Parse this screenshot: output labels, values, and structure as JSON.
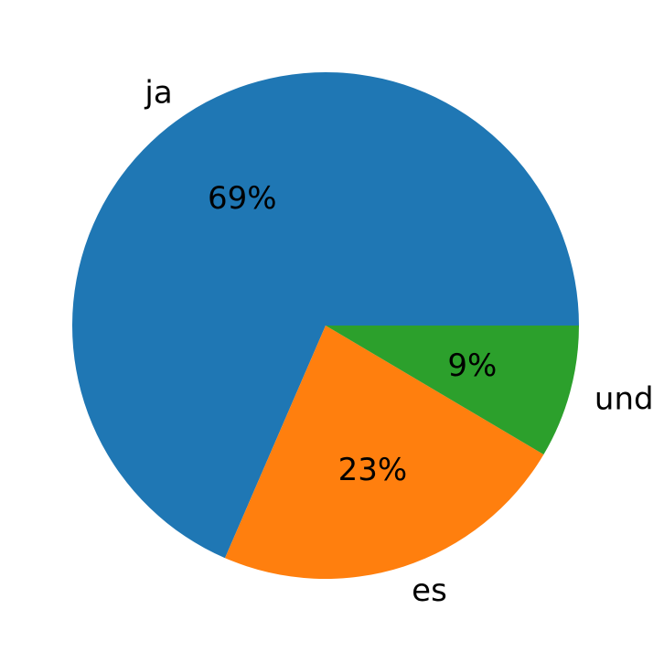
{
  "chart_data": {
    "type": "pie",
    "title": "",
    "start_angle_deg": 0,
    "direction": "counterclockwise",
    "slices": [
      {
        "label": "ja",
        "value": 68.5,
        "pct_label": "69%",
        "color": "#1f77b4"
      },
      {
        "label": "es",
        "value": 23.0,
        "pct_label": "23%",
        "color": "#ff7f0e"
      },
      {
        "label": "und",
        "value": 8.5,
        "pct_label": "9%",
        "color": "#2ca02c"
      }
    ]
  }
}
